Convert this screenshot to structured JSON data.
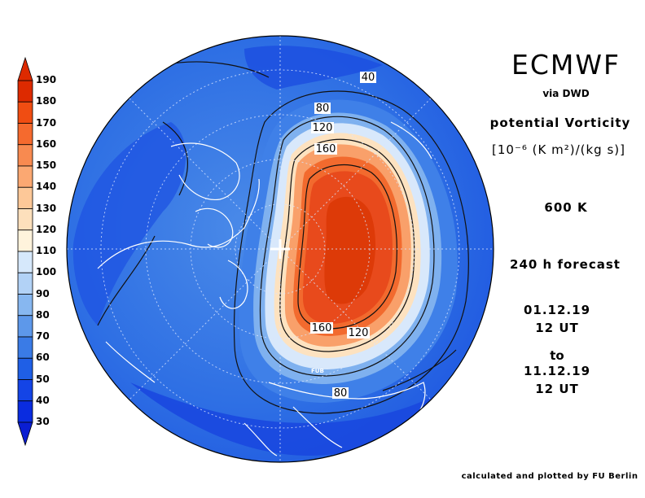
{
  "header": {
    "title": "ECMWF",
    "source": "via DWD",
    "quantity": "potential Vorticity",
    "units": "[10⁻⁶ (K m²)/(kg s)]",
    "level": "600 K",
    "forecast": "240 h forecast",
    "start_date": "01.12.19",
    "start_time": "12 UT",
    "to_label": "to",
    "end_date": "11.12.19",
    "end_time": "12 UT"
  },
  "footer": {
    "credit": "calculated and plotted by FU Berlin"
  },
  "map": {
    "projection": "north-polar-stereographic",
    "station_label": "FUB",
    "contour_labels": [
      "40",
      "80",
      "120",
      "160",
      "160",
      "120",
      "80"
    ]
  },
  "colorbar": {
    "ticks": [
      "190",
      "180",
      "170",
      "160",
      "150",
      "140",
      "130",
      "120",
      "110",
      "100",
      "90",
      "80",
      "70",
      "60",
      "50",
      "40",
      "30"
    ],
    "colors": [
      "#dd2a00",
      "#f04d12",
      "#f56a2e",
      "#f88a50",
      "#fba872",
      "#fdc898",
      "#fde0bc",
      "#fff3dc",
      "#d6e8fb",
      "#b2d2f6",
      "#87b7f0",
      "#5d98ea",
      "#3a7be6",
      "#1f5fe6",
      "#1444e6",
      "#0a2ce0"
    ],
    "top_arrow_color": "#dd2a00",
    "bottom_arrow_color": "#0a1ed2"
  },
  "colors": {
    "background_low": "#1f5fe6",
    "background_mid": "#3a7be6",
    "vortex_core": "#e8441c"
  }
}
